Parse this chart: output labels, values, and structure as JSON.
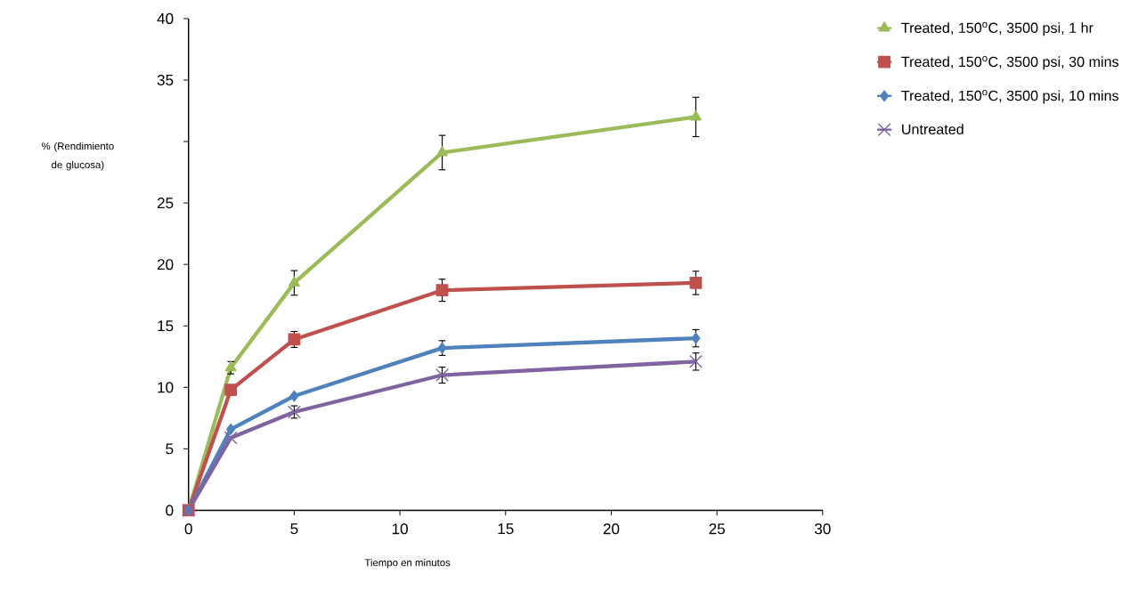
{
  "chart_data": {
    "type": "line",
    "xlabel": "Tiempo en minutos",
    "ylabel": "% (Rendimiento de glucosa)",
    "x": [
      0,
      2,
      5,
      12,
      24
    ],
    "series": [
      {
        "name": "Treated, 150$^{o}$C, 3500 psi, 1 hr",
        "color": "#9bbb59",
        "marker": "triangle",
        "values": [
          0,
          11.6,
          18.5,
          29.1,
          32.0
        ],
        "errors": [
          null,
          0.5,
          1.0,
          1.4,
          1.6
        ]
      },
      {
        "name": "Treated, 150$^{o}$C, 3500 psi, 30 mins",
        "color": "#c0504d",
        "marker": "square",
        "values": [
          0,
          9.8,
          13.9,
          17.9,
          18.5
        ],
        "errors": [
          null,
          null,
          0.65,
          0.9,
          0.95
        ]
      },
      {
        "name": "Treated, 150$^{o}$C, 3500 psi, 10 mins",
        "color": "#4f81bd",
        "marker": "diamond",
        "values": [
          0,
          6.6,
          9.3,
          13.2,
          14.0
        ],
        "errors": [
          null,
          null,
          null,
          0.6,
          0.7
        ]
      },
      {
        "name": "Untreated",
        "color": "#8064a2",
        "marker": "cross",
        "values": [
          0,
          5.9,
          8.0,
          11.0,
          12.1
        ],
        "errors": [
          null,
          null,
          0.5,
          0.65,
          0.7
        ]
      }
    ],
    "xlim": [
      0,
      30
    ],
    "xticks": [
      0,
      5,
      10,
      15,
      20,
      25,
      30
    ],
    "ylim": [
      0,
      40
    ],
    "yticks": [
      0,
      5,
      10,
      15,
      20,
      25,
      {
        "value": 30,
        "label": null
      },
      35,
      40
    ],
    "grid": false,
    "legend": "top right",
    "line_style": "solid"
  }
}
